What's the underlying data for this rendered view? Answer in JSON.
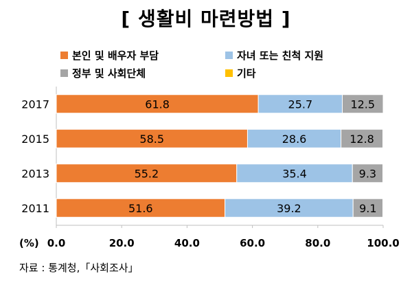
{
  "title": "[ 생활비 마련방법 ]",
  "source": "자료 : 통계청,「사회조사」",
  "axis_unit": "(%)",
  "colors": {
    "self": "#ED7D31",
    "children": "#9DC3E6",
    "government": "#A5A5A5",
    "other": "#FFC000"
  },
  "chart_data": {
    "type": "bar",
    "orientation": "horizontal",
    "stacked": true,
    "title": "[ 생활비 마련방법 ]",
    "categories": [
      "2017",
      "2015",
      "2013",
      "2011"
    ],
    "series": [
      {
        "name": "본인 및 배우자 부담",
        "values": [
          61.8,
          58.5,
          55.2,
          51.6
        ],
        "color": "#ED7D31"
      },
      {
        "name": "자녀 또는 친척 지원",
        "values": [
          25.7,
          28.6,
          35.4,
          39.2
        ],
        "color": "#9DC3E6"
      },
      {
        "name": "정부 및 사회단체",
        "values": [
          12.5,
          12.8,
          9.3,
          9.1
        ],
        "color": "#A5A5A5"
      },
      {
        "name": "기타",
        "values": [
          0.0,
          0.1,
          0.1,
          0.1
        ],
        "color": "#FFC000"
      }
    ],
    "xlim": [
      0,
      100
    ],
    "xticks": [
      "0.0",
      "20.0",
      "40.0",
      "60.0",
      "80.0",
      "100.0"
    ],
    "grid": false,
    "legend": "top"
  }
}
